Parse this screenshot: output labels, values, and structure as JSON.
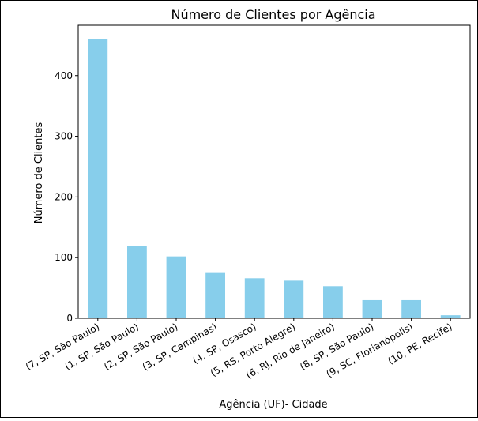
{
  "chart_data": {
    "type": "bar",
    "title": "Número de Clientes por Agência",
    "xlabel": "Agência (UF)- Cidade",
    "ylabel": "Número de Clientes",
    "categories": [
      "(7, SP, São Paulo)",
      "(1, SP, São Paulo)",
      "(2, SP, São Paulo)",
      "(3, SP, Campinas)",
      "(4, SP, Osasco)",
      "(5, RS, Porto Alegre)",
      "(6, RJ, Rio de Janeiro)",
      "(8, SP, São Paulo)",
      "(9, SC, Florianópolis)",
      "(10, PE, Recife)"
    ],
    "values": [
      460,
      119,
      102,
      76,
      66,
      62,
      53,
      30,
      30,
      5
    ],
    "ylim": [
      0,
      483
    ],
    "yticks": [
      0,
      100,
      200,
      300,
      400
    ],
    "grid": false,
    "bar_color": "#87ceeb"
  }
}
